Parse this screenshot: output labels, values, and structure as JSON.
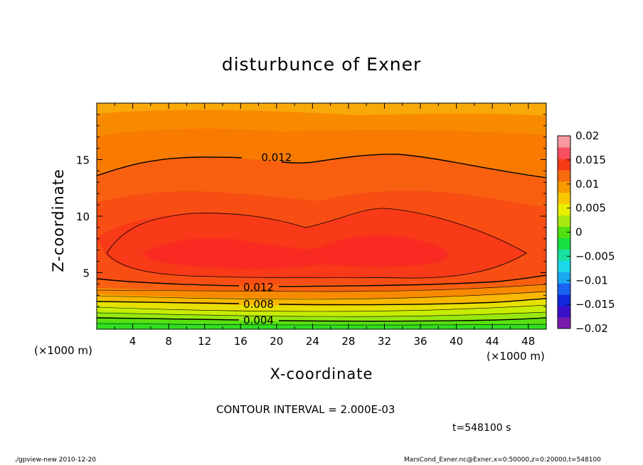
{
  "title": "disturbunce of Exner",
  "y_axis_label": "Z-coordinate",
  "x_axis_label": "X-coordinate",
  "x_unit_left": "(×1000 m)",
  "x_unit_right": "(×1000 m)",
  "contour_interval": "CONTOUR INTERVAL = 2.000E-03",
  "time": "t=548100 s",
  "footer_left": "./gpview-new  2010-12-20",
  "footer_right": "MarsCond_Exner.nc@Exner,x=0:50000,z=0:20000,t=548100",
  "chart_data": {
    "type": "heatmap",
    "xlim": [
      0,
      50
    ],
    "ylim": [
      0,
      20
    ],
    "x_ticks": [
      4,
      8,
      12,
      16,
      20,
      24,
      28,
      32,
      36,
      40,
      44,
      48
    ],
    "x_tick_labels": [
      "4",
      "8",
      "12",
      "16",
      "20",
      "24",
      "28",
      "32",
      "36",
      "40",
      "44",
      "48"
    ],
    "y_ticks": [
      5,
      10,
      15
    ],
    "y_tick_labels": [
      "5",
      "10",
      "15"
    ],
    "contour_labels": [
      {
        "text": "0.012",
        "x": 20,
        "z": 15.2
      },
      {
        "text": "0.012",
        "x": 18,
        "z": 3.7
      },
      {
        "text": "0.008",
        "x": 18,
        "z": 2.2
      },
      {
        "text": "0.004",
        "x": 18,
        "z": 0.8
      }
    ],
    "colorbar": {
      "levels": [
        -0.02,
        -0.0175,
        -0.015,
        -0.0125,
        -0.01,
        -0.0075,
        -0.005,
        -0.0025,
        0,
        0.0025,
        0.005,
        0.0075,
        0.01,
        0.0125,
        0.015,
        0.0175,
        0.02
      ],
      "tick_values": [
        0.02,
        0.015,
        0.01,
        0.005,
        0,
        -0.005,
        -0.01,
        -0.015,
        -0.02
      ],
      "tick_labels": [
        "0.02",
        "0.015",
        "0.01",
        "0.005",
        "0",
        "−0.005",
        "−0.01",
        "−0.015",
        "−0.02"
      ],
      "colors": [
        "#7a1bb0",
        "#3a10c8",
        "#1028e0",
        "#1a62f0",
        "#1aa8f0",
        "#1ad8e8",
        "#1ae0a0",
        "#18e040",
        "#50e010",
        "#a8e810",
        "#e8f000",
        "#f8c800",
        "#f89a00",
        "#f86a10",
        "#f83a18",
        "#f85060",
        "#f898a0"
      ]
    },
    "colormap": "rainbow"
  }
}
